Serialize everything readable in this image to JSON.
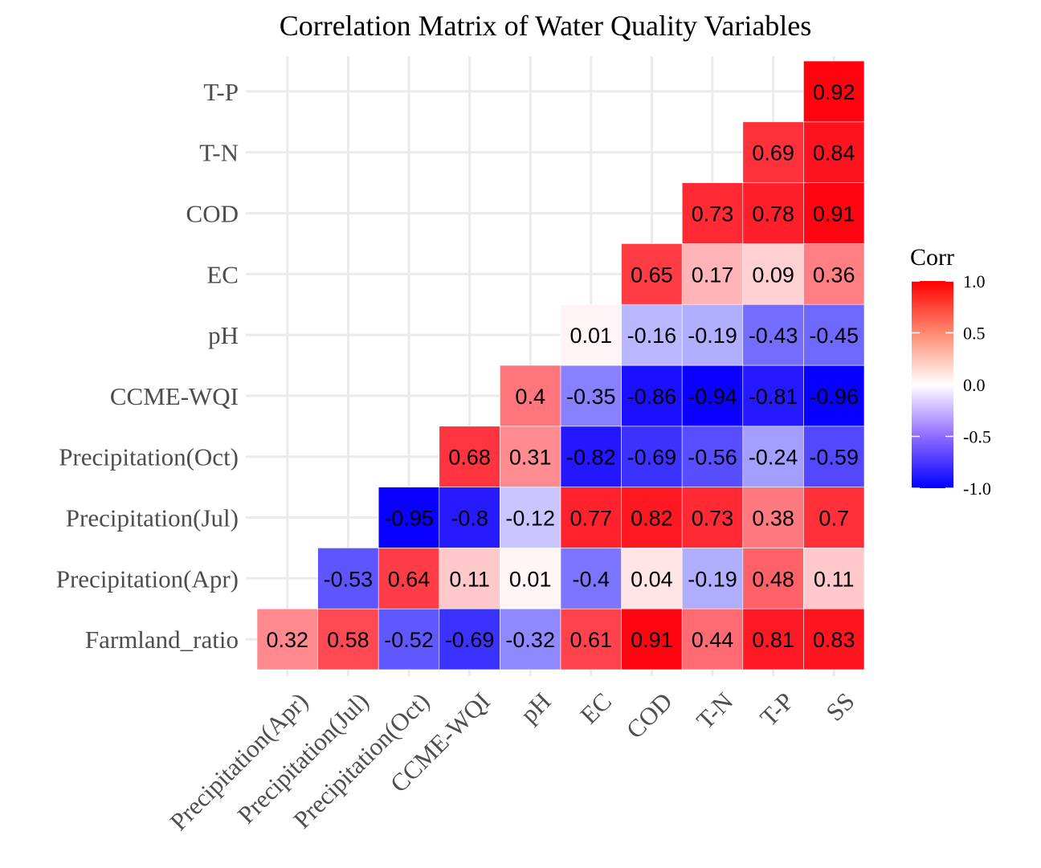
{
  "chart_data": {
    "type": "heatmap",
    "title": "Correlation Matrix of Water Quality Variables",
    "x_categories": [
      "Precipitation(Apr)",
      "Precipitation(Jul)",
      "Precipitation(Oct)",
      "CCME-WQI",
      "pH",
      "EC",
      "COD",
      "T-N",
      "T-P",
      "SS"
    ],
    "y_categories": [
      "Farmland_ratio",
      "Precipitation(Apr)",
      "Precipitation(Jul)",
      "Precipitation(Oct)",
      "CCME-WQI",
      "pH",
      "EC",
      "COD",
      "T-N",
      "T-P"
    ],
    "cells": [
      {
        "x": "Precipitation(Apr)",
        "y": "Farmland_ratio",
        "value": 0.32,
        "label": "0.32"
      },
      {
        "x": "Precipitation(Jul)",
        "y": "Farmland_ratio",
        "value": 0.58,
        "label": "0.58"
      },
      {
        "x": "Precipitation(Oct)",
        "y": "Farmland_ratio",
        "value": -0.52,
        "label": "-0.52"
      },
      {
        "x": "CCME-WQI",
        "y": "Farmland_ratio",
        "value": -0.69,
        "label": "-0.69"
      },
      {
        "x": "pH",
        "y": "Farmland_ratio",
        "value": -0.32,
        "label": "-0.32"
      },
      {
        "x": "EC",
        "y": "Farmland_ratio",
        "value": 0.61,
        "label": "0.61"
      },
      {
        "x": "COD",
        "y": "Farmland_ratio",
        "value": 0.91,
        "label": "0.91"
      },
      {
        "x": "T-N",
        "y": "Farmland_ratio",
        "value": 0.44,
        "label": "0.44"
      },
      {
        "x": "T-P",
        "y": "Farmland_ratio",
        "value": 0.81,
        "label": "0.81"
      },
      {
        "x": "SS",
        "y": "Farmland_ratio",
        "value": 0.83,
        "label": "0.83"
      },
      {
        "x": "Precipitation(Jul)",
        "y": "Precipitation(Apr)",
        "value": -0.53,
        "label": "-0.53"
      },
      {
        "x": "Precipitation(Oct)",
        "y": "Precipitation(Apr)",
        "value": 0.64,
        "label": "0.64"
      },
      {
        "x": "CCME-WQI",
        "y": "Precipitation(Apr)",
        "value": 0.11,
        "label": "0.11"
      },
      {
        "x": "pH",
        "y": "Precipitation(Apr)",
        "value": 0.01,
        "label": "0.01"
      },
      {
        "x": "EC",
        "y": "Precipitation(Apr)",
        "value": -0.4,
        "label": "-0.4"
      },
      {
        "x": "COD",
        "y": "Precipitation(Apr)",
        "value": 0.04,
        "label": "0.04"
      },
      {
        "x": "T-N",
        "y": "Precipitation(Apr)",
        "value": -0.19,
        "label": "-0.19"
      },
      {
        "x": "T-P",
        "y": "Precipitation(Apr)",
        "value": 0.48,
        "label": "0.48"
      },
      {
        "x": "SS",
        "y": "Precipitation(Apr)",
        "value": 0.11,
        "label": "0.11"
      },
      {
        "x": "Precipitation(Oct)",
        "y": "Precipitation(Jul)",
        "value": -0.95,
        "label": "-0.95"
      },
      {
        "x": "CCME-WQI",
        "y": "Precipitation(Jul)",
        "value": -0.8,
        "label": "-0.8"
      },
      {
        "x": "pH",
        "y": "Precipitation(Jul)",
        "value": -0.12,
        "label": "-0.12"
      },
      {
        "x": "EC",
        "y": "Precipitation(Jul)",
        "value": 0.77,
        "label": "0.77"
      },
      {
        "x": "COD",
        "y": "Precipitation(Jul)",
        "value": 0.82,
        "label": "0.82"
      },
      {
        "x": "T-N",
        "y": "Precipitation(Jul)",
        "value": 0.73,
        "label": "0.73"
      },
      {
        "x": "T-P",
        "y": "Precipitation(Jul)",
        "value": 0.38,
        "label": "0.38"
      },
      {
        "x": "SS",
        "y": "Precipitation(Jul)",
        "value": 0.7,
        "label": "0.7"
      },
      {
        "x": "CCME-WQI",
        "y": "Precipitation(Oct)",
        "value": 0.68,
        "label": "0.68"
      },
      {
        "x": "pH",
        "y": "Precipitation(Oct)",
        "value": 0.31,
        "label": "0.31"
      },
      {
        "x": "EC",
        "y": "Precipitation(Oct)",
        "value": -0.82,
        "label": "-0.82"
      },
      {
        "x": "COD",
        "y": "Precipitation(Oct)",
        "value": -0.69,
        "label": "-0.69"
      },
      {
        "x": "T-N",
        "y": "Precipitation(Oct)",
        "value": -0.56,
        "label": "-0.56"
      },
      {
        "x": "T-P",
        "y": "Precipitation(Oct)",
        "value": -0.24,
        "label": "-0.24"
      },
      {
        "x": "SS",
        "y": "Precipitation(Oct)",
        "value": -0.59,
        "label": "-0.59"
      },
      {
        "x": "pH",
        "y": "CCME-WQI",
        "value": 0.4,
        "label": "0.4"
      },
      {
        "x": "EC",
        "y": "CCME-WQI",
        "value": -0.35,
        "label": "-0.35"
      },
      {
        "x": "COD",
        "y": "CCME-WQI",
        "value": -0.86,
        "label": "-0.86"
      },
      {
        "x": "T-N",
        "y": "CCME-WQI",
        "value": -0.94,
        "label": "-0.94"
      },
      {
        "x": "T-P",
        "y": "CCME-WQI",
        "value": -0.81,
        "label": "-0.81"
      },
      {
        "x": "SS",
        "y": "CCME-WQI",
        "value": -0.96,
        "label": "-0.96"
      },
      {
        "x": "EC",
        "y": "pH",
        "value": 0.01,
        "label": "0.01"
      },
      {
        "x": "COD",
        "y": "pH",
        "value": -0.16,
        "label": "-0.16"
      },
      {
        "x": "T-N",
        "y": "pH",
        "value": -0.19,
        "label": "-0.19"
      },
      {
        "x": "T-P",
        "y": "pH",
        "value": -0.43,
        "label": "-0.43"
      },
      {
        "x": "SS",
        "y": "pH",
        "value": -0.45,
        "label": "-0.45"
      },
      {
        "x": "COD",
        "y": "EC",
        "value": 0.65,
        "label": "0.65"
      },
      {
        "x": "T-N",
        "y": "EC",
        "value": 0.17,
        "label": "0.17"
      },
      {
        "x": "T-P",
        "y": "EC",
        "value": 0.09,
        "label": "0.09"
      },
      {
        "x": "SS",
        "y": "EC",
        "value": 0.36,
        "label": "0.36"
      },
      {
        "x": "T-N",
        "y": "COD",
        "value": 0.73,
        "label": "0.73"
      },
      {
        "x": "T-P",
        "y": "COD",
        "value": 0.78,
        "label": "0.78"
      },
      {
        "x": "SS",
        "y": "COD",
        "value": 0.91,
        "label": "0.91"
      },
      {
        "x": "T-P",
        "y": "T-N",
        "value": 0.69,
        "label": "0.69"
      },
      {
        "x": "SS",
        "y": "T-N",
        "value": 0.84,
        "label": "0.84"
      },
      {
        "x": "SS",
        "y": "T-P",
        "value": 0.92,
        "label": "0.92"
      }
    ],
    "legend": {
      "title": "Corr",
      "range": [
        -1,
        1
      ],
      "ticks": [
        1.0,
        0.5,
        0.0,
        -0.5,
        -1.0
      ],
      "tick_labels": [
        "1.0",
        "0.5",
        "0.0",
        "-0.5",
        "-1.0"
      ],
      "position": "right"
    },
    "colors": {
      "low": "#0000FF",
      "mid": "#FFFFFF",
      "high": "#FF0000",
      "grid": "#EBEBEB",
      "axis_text": "#4D4D4D"
    },
    "grid": true
  }
}
